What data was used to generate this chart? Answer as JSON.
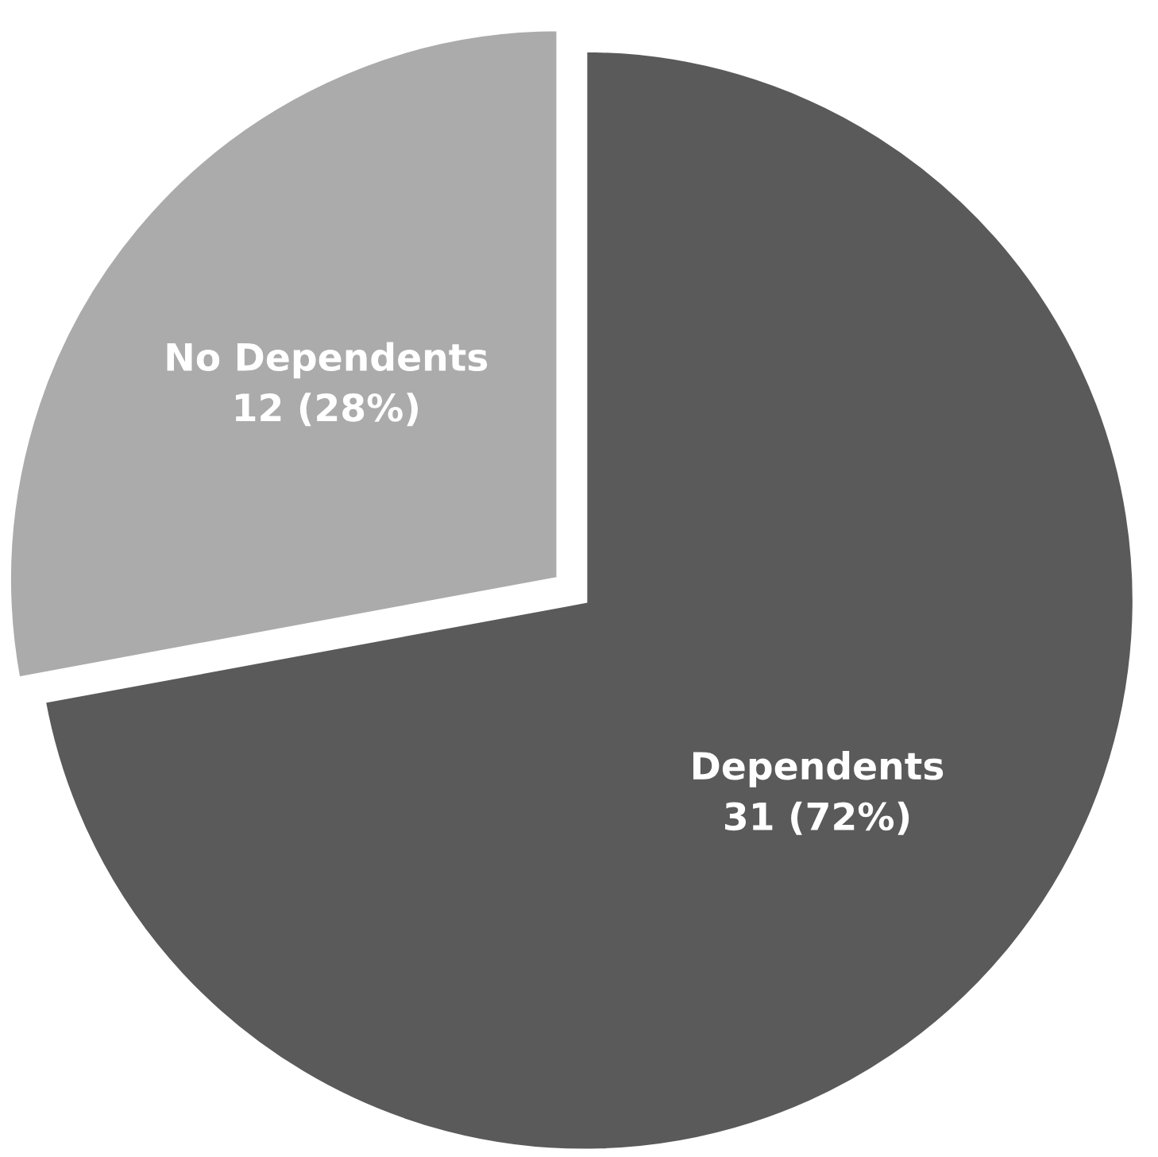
{
  "chart_data": {
    "type": "pie",
    "categories": [
      "Dependents",
      "No Dependents"
    ],
    "values": [
      31,
      12
    ],
    "colors": [
      "#5a5a5a",
      "#ababab"
    ],
    "value_labels": [
      "31 (72%)",
      "12 (28%)"
    ]
  }
}
